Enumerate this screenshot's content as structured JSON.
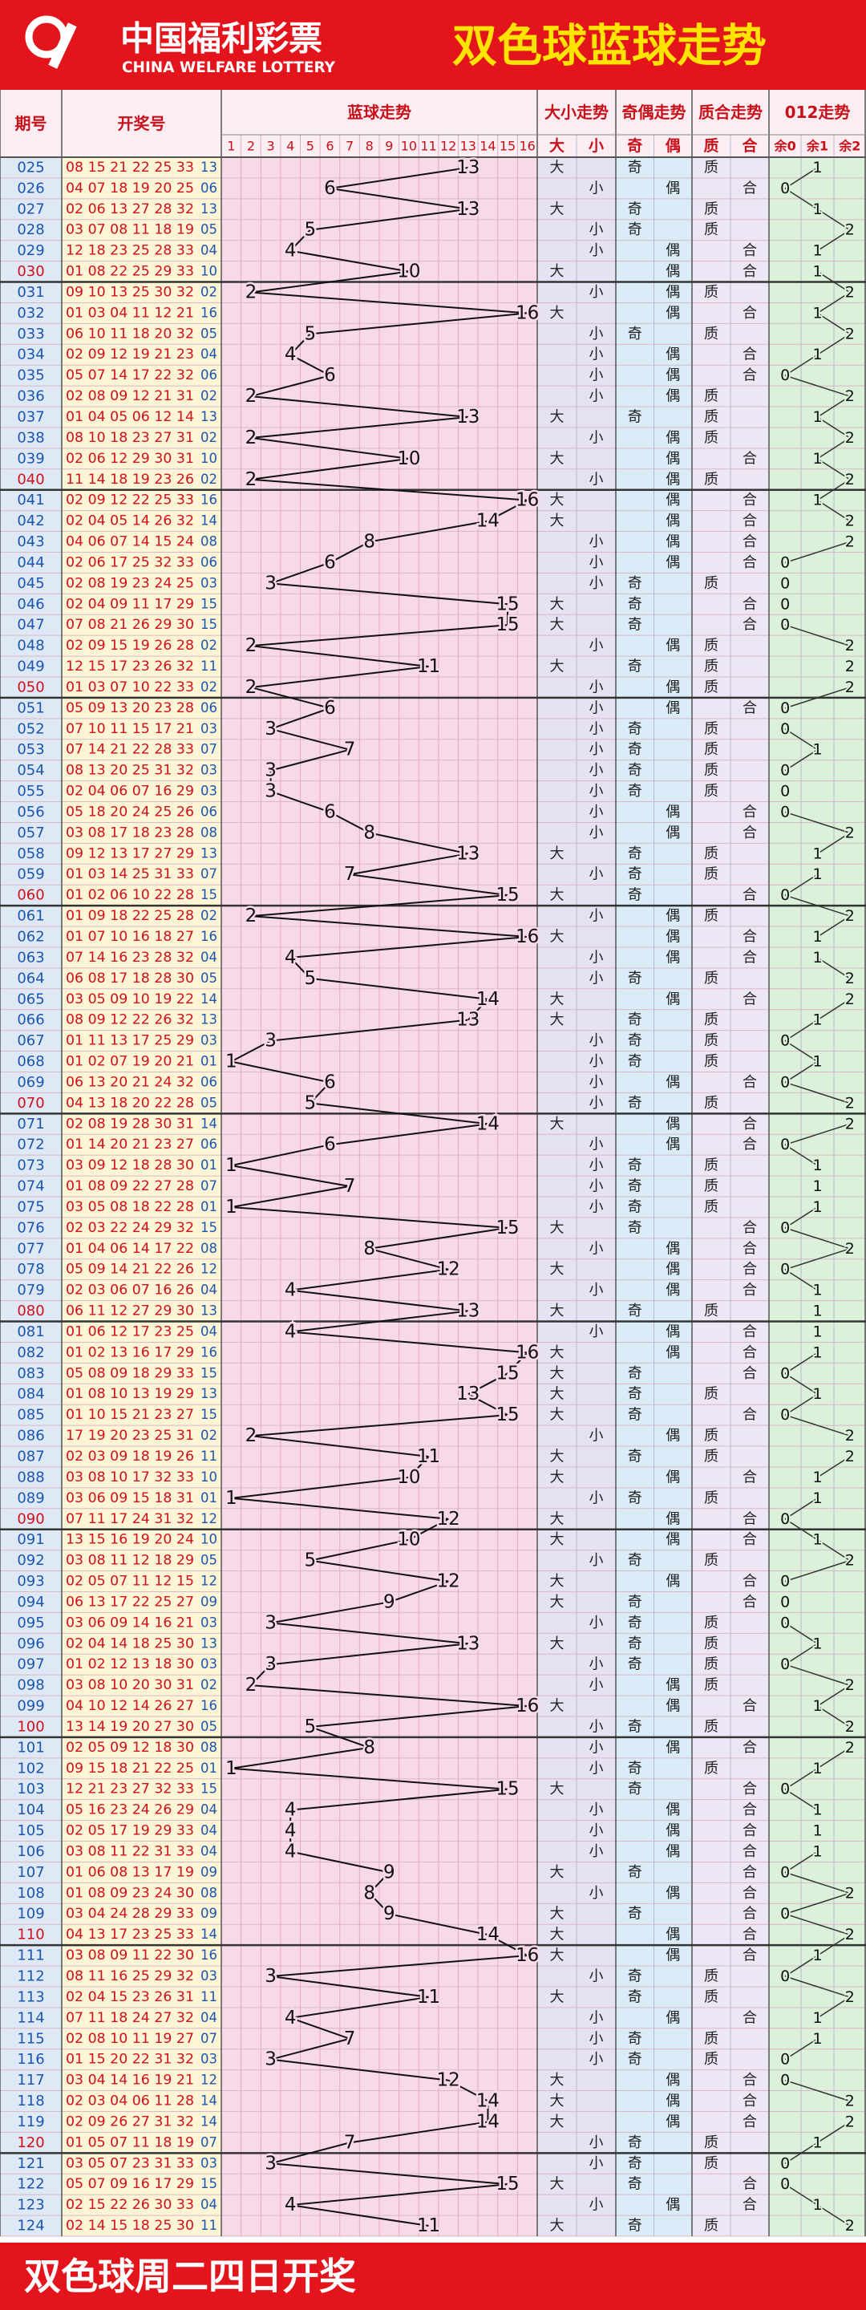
{
  "header": {
    "logo_cn": "中国福利彩票",
    "logo_en": "CHINA WELFARE LOTTERY",
    "title": "双色球蓝球走势"
  },
  "table": {
    "columns": [
      "期号",
      "开奖号",
      "蓝球走势",
      "大小走势",
      "奇偶走势",
      "质合走势",
      "012走势"
    ],
    "blue_cols": [
      1,
      2,
      3,
      4,
      5,
      6,
      7,
      8,
      9,
      10,
      11,
      12,
      13,
      14,
      15,
      16
    ],
    "size_cols": [
      "大",
      "小"
    ],
    "parity_cols": [
      "奇",
      "偶"
    ],
    "prime_cols": [
      "质",
      "合"
    ],
    "mod_cols": [
      "余0",
      "余1",
      "余2"
    ],
    "rows": [
      [
        "025",
        "08 15 21 22 25 33",
        "13",
        13,
        "大",
        "奇",
        "质",
        1
      ],
      [
        "026",
        "04 07 18 19 20 25",
        "06",
        6,
        "小",
        "偶",
        "合",
        0
      ],
      [
        "027",
        "02 06 13 27 28 32",
        "13",
        13,
        "大",
        "奇",
        "质",
        1
      ],
      [
        "028",
        "03 07 08 11 18 19",
        "05",
        5,
        "小",
        "奇",
        "质",
        2
      ],
      [
        "029",
        "12 18 23 25 28 33",
        "04",
        4,
        "小",
        "偶",
        "合",
        1
      ],
      [
        "030",
        "01 08 22 25 29 33",
        "10",
        10,
        "大",
        "偶",
        "合",
        1
      ],
      [
        "031",
        "09 10 13 25 30 32",
        "02",
        2,
        "小",
        "偶",
        "质",
        2
      ],
      [
        "032",
        "01 03 04 11 12 21",
        "16",
        16,
        "大",
        "偶",
        "合",
        1
      ],
      [
        "033",
        "06 10 11 18 20 32",
        "05",
        5,
        "小",
        "奇",
        "质",
        2
      ],
      [
        "034",
        "02 09 12 19 21 23",
        "04",
        4,
        "小",
        "偶",
        "合",
        1
      ],
      [
        "035",
        "05 07 14 17 22 32",
        "06",
        6,
        "小",
        "偶",
        "合",
        0
      ],
      [
        "036",
        "02 08 09 12 21 31",
        "02",
        2,
        "小",
        "偶",
        "质",
        2
      ],
      [
        "037",
        "01 04 05 06 12 14",
        "13",
        13,
        "大",
        "奇",
        "质",
        1
      ],
      [
        "038",
        "08 10 18 23 27 31",
        "02",
        2,
        "小",
        "偶",
        "质",
        2
      ],
      [
        "039",
        "02 06 12 29 30 31",
        "10",
        10,
        "大",
        "偶",
        "合",
        1
      ],
      [
        "040",
        "11 14 18 19 23 26",
        "02",
        2,
        "小",
        "偶",
        "质",
        2
      ],
      [
        "041",
        "02 09 12 22 25 33",
        "16",
        16,
        "大",
        "偶",
        "合",
        1
      ],
      [
        "042",
        "02 04 05 14 26 32",
        "14",
        14,
        "大",
        "偶",
        "合",
        2
      ],
      [
        "043",
        "04 06 07 14 15 24",
        "08",
        8,
        "小",
        "偶",
        "合",
        2
      ],
      [
        "044",
        "02 06 17 25 32 33",
        "06",
        6,
        "小",
        "偶",
        "合",
        0
      ],
      [
        "045",
        "02 08 19 23 24 25",
        "03",
        3,
        "小",
        "奇",
        "质",
        0
      ],
      [
        "046",
        "02 04 09 11 17 29",
        "15",
        15,
        "大",
        "奇",
        "合",
        0
      ],
      [
        "047",
        "07 08 21 26 29 30",
        "15",
        15,
        "大",
        "奇",
        "合",
        0
      ],
      [
        "048",
        "02 09 15 19 26 28",
        "02",
        2,
        "小",
        "偶",
        "质",
        2
      ],
      [
        "049",
        "12 15 17 23 26 32",
        "11",
        11,
        "大",
        "奇",
        "质",
        2
      ],
      [
        "050",
        "01 03 07 10 22 33",
        "02",
        2,
        "小",
        "偶",
        "质",
        2
      ],
      [
        "051",
        "05 09 13 20 23 28",
        "06",
        6,
        "小",
        "偶",
        "合",
        0
      ],
      [
        "052",
        "07 10 11 15 17 21",
        "03",
        3,
        "小",
        "奇",
        "质",
        0
      ],
      [
        "053",
        "07 14 21 22 28 33",
        "07",
        7,
        "小",
        "奇",
        "质",
        1
      ],
      [
        "054",
        "08 13 20 25 31 32",
        "03",
        3,
        "小",
        "奇",
        "质",
        0
      ],
      [
        "055",
        "02 04 06 07 16 29",
        "03",
        3,
        "小",
        "奇",
        "质",
        0
      ],
      [
        "056",
        "05 18 20 24 25 26",
        "06",
        6,
        "小",
        "偶",
        "合",
        0
      ],
      [
        "057",
        "03 08 17 18 23 28",
        "08",
        8,
        "小",
        "偶",
        "合",
        2
      ],
      [
        "058",
        "09 12 13 17 27 29",
        "13",
        13,
        "大",
        "奇",
        "质",
        1
      ],
      [
        "059",
        "01 03 14 25 31 33",
        "07",
        7,
        "小",
        "奇",
        "质",
        1
      ],
      [
        "060",
        "01 02 06 10 22 28",
        "15",
        15,
        "大",
        "奇",
        "合",
        0
      ],
      [
        "061",
        "01 09 18 22 25 28",
        "02",
        2,
        "小",
        "偶",
        "质",
        2
      ],
      [
        "062",
        "01 07 10 16 18 27",
        "16",
        16,
        "大",
        "偶",
        "合",
        1
      ],
      [
        "063",
        "07 14 16 23 28 32",
        "04",
        4,
        "小",
        "偶",
        "合",
        1
      ],
      [
        "064",
        "06 08 17 18 28 30",
        "05",
        5,
        "小",
        "奇",
        "质",
        2
      ],
      [
        "065",
        "03 05 09 10 19 22",
        "14",
        14,
        "大",
        "偶",
        "合",
        2
      ],
      [
        "066",
        "08 09 12 22 26 32",
        "13",
        13,
        "大",
        "奇",
        "质",
        1
      ],
      [
        "067",
        "01 11 13 17 25 29",
        "03",
        3,
        "小",
        "奇",
        "质",
        0
      ],
      [
        "068",
        "01 02 07 19 20 21",
        "01",
        1,
        "小",
        "奇",
        "质",
        1
      ],
      [
        "069",
        "06 13 20 21 24 32",
        "06",
        6,
        "小",
        "偶",
        "合",
        0
      ],
      [
        "070",
        "04 13 18 20 22 28",
        "05",
        5,
        "小",
        "奇",
        "质",
        2
      ],
      [
        "071",
        "02 08 19 28 30 31",
        "14",
        14,
        "大",
        "偶",
        "合",
        2
      ],
      [
        "072",
        "01 14 20 21 23 27",
        "06",
        6,
        "小",
        "偶",
        "合",
        0
      ],
      [
        "073",
        "03 09 12 18 28 30",
        "01",
        1,
        "小",
        "奇",
        "质",
        1
      ],
      [
        "074",
        "01 08 09 22 27 28",
        "07",
        7,
        "小",
        "奇",
        "质",
        1
      ],
      [
        "075",
        "03 05 08 18 22 28",
        "01",
        1,
        "小",
        "奇",
        "质",
        1
      ],
      [
        "076",
        "02 03 22 24 29 32",
        "15",
        15,
        "大",
        "奇",
        "合",
        0
      ],
      [
        "077",
        "01 04 06 14 17 22",
        "08",
        8,
        "小",
        "偶",
        "合",
        2
      ],
      [
        "078",
        "05 09 14 21 22 26",
        "12",
        12,
        "大",
        "偶",
        "合",
        0
      ],
      [
        "079",
        "02 03 06 07 16 26",
        "04",
        4,
        "小",
        "偶",
        "合",
        1
      ],
      [
        "080",
        "06 11 12 27 29 30",
        "13",
        13,
        "大",
        "奇",
        "质",
        1
      ],
      [
        "081",
        "01 06 12 17 23 25",
        "04",
        4,
        "小",
        "偶",
        "合",
        1
      ],
      [
        "082",
        "01 02 13 16 17 29",
        "16",
        16,
        "大",
        "偶",
        "合",
        1
      ],
      [
        "083",
        "05 08 09 18 29 33",
        "15",
        15,
        "大",
        "奇",
        "合",
        0
      ],
      [
        "084",
        "01 08 10 13 19 29",
        "13",
        13,
        "大",
        "奇",
        "质",
        1
      ],
      [
        "085",
        "01 10 15 21 23 27",
        "15",
        15,
        "大",
        "奇",
        "合",
        0
      ],
      [
        "086",
        "17 19 20 23 25 31",
        "02",
        2,
        "小",
        "偶",
        "质",
        2
      ],
      [
        "087",
        "02 03 09 18 19 26",
        "11",
        11,
        "大",
        "奇",
        "质",
        2
      ],
      [
        "088",
        "03 08 10 17 32 33",
        "10",
        10,
        "大",
        "偶",
        "合",
        1
      ],
      [
        "089",
        "03 06 09 15 18 31",
        "01",
        1,
        "小",
        "奇",
        "质",
        1
      ],
      [
        "090",
        "07 11 17 24 31 32",
        "12",
        12,
        "大",
        "偶",
        "合",
        0
      ],
      [
        "091",
        "13 15 16 19 20 24",
        "10",
        10,
        "大",
        "偶",
        "合",
        1
      ],
      [
        "092",
        "03 08 11 12 18 29",
        "05",
        5,
        "小",
        "奇",
        "质",
        2
      ],
      [
        "093",
        "02 05 07 11 12 15",
        "12",
        12,
        "大",
        "偶",
        "合",
        0
      ],
      [
        "094",
        "06 13 17 22 25 27",
        "09",
        9,
        "大",
        "奇",
        "合",
        0
      ],
      [
        "095",
        "03 06 09 14 16 21",
        "03",
        3,
        "小",
        "奇",
        "质",
        0
      ],
      [
        "096",
        "02 04 14 18 25 30",
        "13",
        13,
        "大",
        "奇",
        "质",
        1
      ],
      [
        "097",
        "01 02 12 13 18 30",
        "03",
        3,
        "小",
        "奇",
        "质",
        0
      ],
      [
        "098",
        "03 08 10 20 30 31",
        "02",
        2,
        "小",
        "偶",
        "质",
        2
      ],
      [
        "099",
        "04 10 12 14 26 27",
        "16",
        16,
        "大",
        "偶",
        "合",
        1
      ],
      [
        "100",
        "13 14 19 20 27 30",
        "05",
        5,
        "小",
        "奇",
        "质",
        2
      ],
      [
        "101",
        "02 05 09 12 18 30",
        "08",
        8,
        "小",
        "偶",
        "合",
        2
      ],
      [
        "102",
        "09 15 18 21 22 25",
        "01",
        1,
        "小",
        "奇",
        "质",
        1
      ],
      [
        "103",
        "12 21 23 27 32 33",
        "15",
        15,
        "大",
        "奇",
        "合",
        0
      ],
      [
        "104",
        "05 16 23 24 26 29",
        "04",
        4,
        "小",
        "偶",
        "合",
        1
      ],
      [
        "105",
        "02 05 17 19 29 33",
        "04",
        4,
        "小",
        "偶",
        "合",
        1
      ],
      [
        "106",
        "03 08 11 22 31 33",
        "04",
        4,
        "小",
        "偶",
        "合",
        1
      ],
      [
        "107",
        "01 06 08 13 17 19",
        "09",
        9,
        "大",
        "奇",
        "合",
        0
      ],
      [
        "108",
        "01 08 09 23 24 30",
        "08",
        8,
        "小",
        "偶",
        "合",
        2
      ],
      [
        "109",
        "03 04 24 28 29 33",
        "09",
        9,
        "大",
        "奇",
        "合",
        0
      ],
      [
        "110",
        "04 13 17 23 25 33",
        "14",
        14,
        "大",
        "偶",
        "合",
        2
      ],
      [
        "111",
        "03 08 09 11 22 30",
        "16",
        16,
        "大",
        "偶",
        "合",
        1
      ],
      [
        "112",
        "08 11 16 25 29 32",
        "03",
        3,
        "小",
        "奇",
        "质",
        0
      ],
      [
        "113",
        "02 04 15 23 26 31",
        "11",
        11,
        "大",
        "奇",
        "质",
        2
      ],
      [
        "114",
        "07 11 18 24 27 32",
        "04",
        4,
        "小",
        "偶",
        "合",
        1
      ],
      [
        "115",
        "02 08 10 11 19 27",
        "07",
        7,
        "小",
        "奇",
        "质",
        1
      ],
      [
        "116",
        "01 15 20 22 31 32",
        "03",
        3,
        "小",
        "奇",
        "质",
        0
      ],
      [
        "117",
        "03 04 14 16 19 21",
        "12",
        12,
        "大",
        "偶",
        "合",
        0
      ],
      [
        "118",
        "02 03 04 06 11 28",
        "14",
        14,
        "大",
        "偶",
        "合",
        2
      ],
      [
        "119",
        "02 09 26 27 31 32",
        "14",
        14,
        "大",
        "偶",
        "合",
        2
      ],
      [
        "120",
        "01 05 07 11 18 19",
        "07",
        7,
        "小",
        "奇",
        "质",
        1
      ],
      [
        "121",
        "03 05 07 23 31 33",
        "03",
        3,
        "小",
        "奇",
        "质",
        0
      ],
      [
        "122",
        "05 07 09 16 17 29",
        "15",
        15,
        "大",
        "奇",
        "合",
        0
      ],
      [
        "123",
        "02 15 22 26 30 33",
        "04",
        4,
        "小",
        "偶",
        "合",
        1
      ],
      [
        "124",
        "02 14 15 18 25 30",
        "11",
        11,
        "大",
        "奇",
        "质",
        2
      ]
    ]
  },
  "footer": "双色球周二四日开奖"
}
